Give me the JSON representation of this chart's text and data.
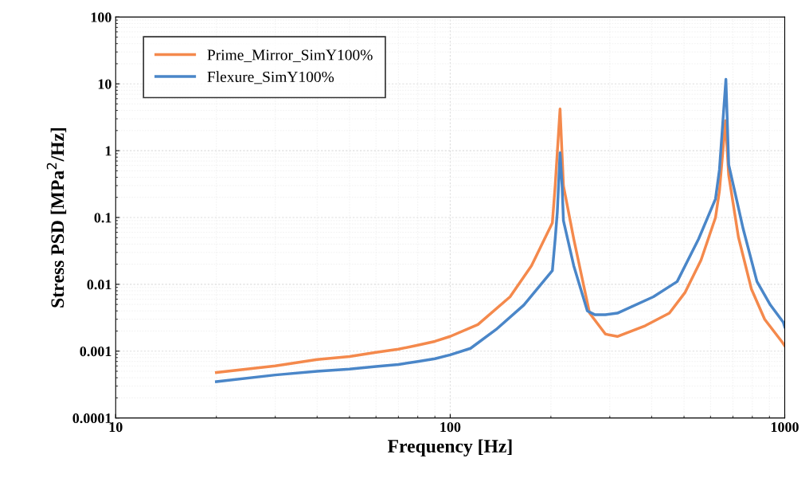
{
  "chart_data": {
    "type": "line",
    "xlabel": "Frequency [Hz]",
    "ylabel": "Stress PSD [MPa$^{2}$/Hz]",
    "log": "xy",
    "grid": true,
    "legend": "top left",
    "xlim": [
      10,
      1000
    ],
    "xticks": [
      10,
      100,
      1000
    ],
    "ylim": [
      0.0001,
      100
    ],
    "yticks": [
      0.0001,
      0.001,
      0.01,
      0.1,
      1,
      10,
      100
    ],
    "series": [
      {
        "name": "Prime_Mirror_SimY100%",
        "color": "#f4894c",
        "x": [
          20,
          30,
          40,
          50,
          60,
          70,
          80,
          90,
          100,
          121,
          151,
          175,
          202,
          206,
          213,
          218,
          234,
          261,
          291,
          316,
          383,
          452,
          504,
          562,
          621,
          638,
          665,
          680,
          727,
          795,
          871,
          984,
          1000
        ],
        "values": [
          0.00048,
          0.0006,
          0.00075,
          0.00083,
          0.00096,
          0.00107,
          0.00123,
          0.0014,
          0.00166,
          0.0025,
          0.0065,
          0.019,
          0.083,
          0.3,
          4.2,
          0.3,
          0.048,
          0.0037,
          0.0018,
          0.00166,
          0.0024,
          0.0037,
          0.0076,
          0.023,
          0.1,
          0.25,
          2.8,
          0.43,
          0.051,
          0.0085,
          0.003,
          0.00135,
          0.0012
        ]
      },
      {
        "name": "Flexure_SimY100%",
        "color": "#4a86c8",
        "x": [
          20,
          30,
          40,
          50,
          60,
          70,
          80,
          90,
          100,
          115,
          137,
          166,
          202,
          206,
          209,
          213,
          216,
          218,
          234,
          257,
          271,
          291,
          316,
          405,
          477,
          553,
          621,
          638,
          667,
          680,
          751,
          826,
          906,
          990,
          1000
        ],
        "values": [
          0.00035,
          0.00044,
          0.0005,
          0.00054,
          0.00059,
          0.00063,
          0.0007,
          0.00077,
          0.00088,
          0.0011,
          0.0021,
          0.0049,
          0.016,
          0.048,
          0.12,
          0.93,
          0.3,
          0.09,
          0.019,
          0.004,
          0.0035,
          0.0035,
          0.0037,
          0.0065,
          0.011,
          0.048,
          0.19,
          0.52,
          11.7,
          0.62,
          0.068,
          0.011,
          0.0049,
          0.0027,
          0.0023
        ]
      }
    ]
  }
}
